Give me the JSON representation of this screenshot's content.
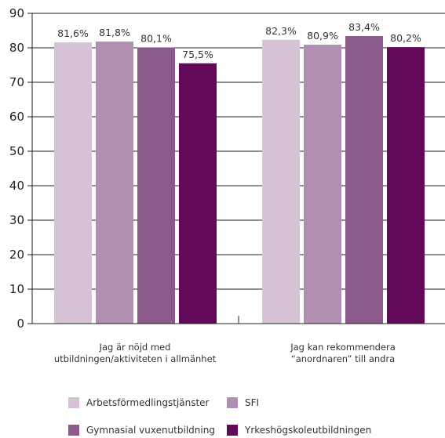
{
  "chart_data": {
    "type": "bar",
    "categories": [
      [
        "Jag är nöjd med",
        "utbildningen/aktiviteten i allmänhet"
      ],
      [
        "Jag kan rekommendera",
        "“anordnaren” till andra"
      ]
    ],
    "series": [
      {
        "name": "Arbetsförmedlingstjänster",
        "color": "#d6c4d6",
        "values": [
          81.6,
          82.3
        ],
        "labels": [
          "81,6%",
          "82,3%"
        ]
      },
      {
        "name": "SFI",
        "color": "#b08fb2",
        "values": [
          81.8,
          80.9
        ],
        "labels": [
          "81,8%",
          "80,9%"
        ]
      },
      {
        "name": "Gymnasial vuxenutbildning",
        "color": "#8b5a8a",
        "values": [
          80.1,
          83.4
        ],
        "labels": [
          "80,1%",
          "83,4%"
        ]
      },
      {
        "name": "Yrkeshögskoleutbildningen",
        "color": "#620a59",
        "values": [
          75.5,
          80.2
        ],
        "labels": [
          "75,5%",
          "80,2%"
        ]
      }
    ],
    "yticks": [
      "0",
      "10",
      "20",
      "30",
      "40",
      "50",
      "60",
      "70",
      "80",
      "90"
    ],
    "ylim": [
      0,
      90
    ],
    "grid": true,
    "gridColor": "#222222",
    "legend_position": "bottom"
  }
}
